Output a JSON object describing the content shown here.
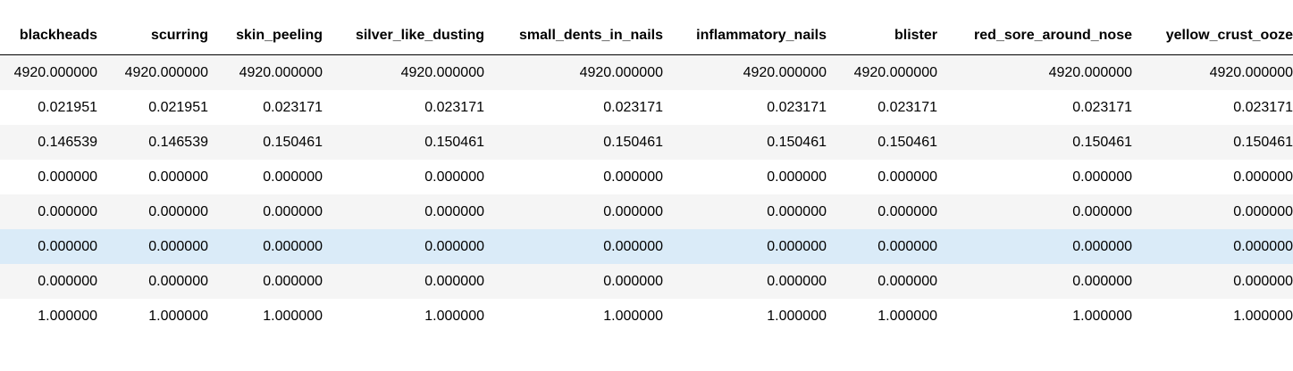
{
  "table": {
    "columns": [
      "blackheads",
      "scurring",
      "skin_peeling",
      "silver_like_dusting",
      "small_dents_in_nails",
      "inflammatory_nails",
      "blister",
      "red_sore_around_nose",
      "yellow_crust_ooze"
    ],
    "rows": [
      [
        "4920.000000",
        "4920.000000",
        "4920.000000",
        "4920.000000",
        "4920.000000",
        "4920.000000",
        "4920.000000",
        "4920.000000",
        "4920.000000"
      ],
      [
        "0.021951",
        "0.021951",
        "0.023171",
        "0.023171",
        "0.023171",
        "0.023171",
        "0.023171",
        "0.023171",
        "0.023171"
      ],
      [
        "0.146539",
        "0.146539",
        "0.150461",
        "0.150461",
        "0.150461",
        "0.150461",
        "0.150461",
        "0.150461",
        "0.150461"
      ],
      [
        "0.000000",
        "0.000000",
        "0.000000",
        "0.000000",
        "0.000000",
        "0.000000",
        "0.000000",
        "0.000000",
        "0.000000"
      ],
      [
        "0.000000",
        "0.000000",
        "0.000000",
        "0.000000",
        "0.000000",
        "0.000000",
        "0.000000",
        "0.000000",
        "0.000000"
      ],
      [
        "0.000000",
        "0.000000",
        "0.000000",
        "0.000000",
        "0.000000",
        "0.000000",
        "0.000000",
        "0.000000",
        "0.000000"
      ],
      [
        "0.000000",
        "0.000000",
        "0.000000",
        "0.000000",
        "0.000000",
        "0.000000",
        "0.000000",
        "0.000000",
        "0.000000"
      ],
      [
        "1.000000",
        "1.000000",
        "1.000000",
        "1.000000",
        "1.000000",
        "1.000000",
        "1.000000",
        "1.000000",
        "1.000000"
      ]
    ],
    "hovered_row": 5
  },
  "colors": {
    "header_border": "#000000",
    "striped_row": "#f5f5f5",
    "plain_row": "#ffffff",
    "hover_row": "#daebf8"
  }
}
